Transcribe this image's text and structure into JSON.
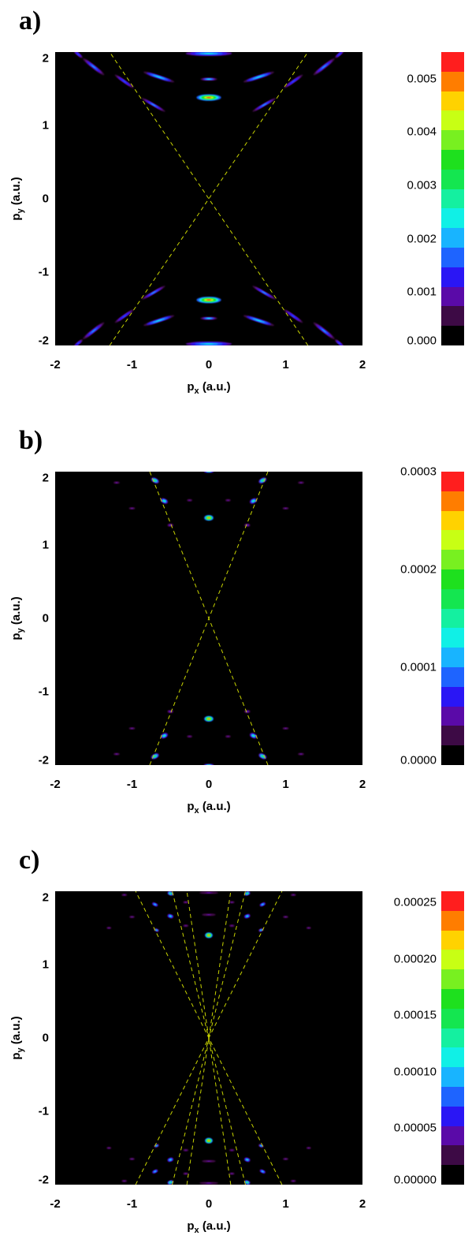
{
  "chart_data": [
    {
      "panel": "a)",
      "type": "heatmap",
      "xlabel_main": "p",
      "xlabel_sub": "x",
      "xlabel_unit": "(a.u.)",
      "ylabel_main": "p",
      "ylabel_sub": "y",
      "ylabel_unit": "(a.u.)",
      "xlim": [
        -2,
        2
      ],
      "ylim": [
        -2,
        2
      ],
      "xticks": [
        "-2",
        "-1",
        "0",
        "1",
        "2"
      ],
      "yticks": [
        "2",
        "1",
        "0",
        "-1",
        "-2"
      ],
      "colorbar_ticks": [
        "0.005",
        "0.004",
        "0.003",
        "0.002",
        "0.001",
        "0.000"
      ],
      "colorbar_values": [
        0.005,
        0.004,
        0.003,
        0.002,
        0.001,
        0.0
      ],
      "colorbar_max": 0.0055,
      "dashed_line_slopes": [
        1.55,
        -1.55
      ],
      "dashed_line_color": "#c8d400",
      "blobs": [
        {
          "x": 0.0,
          "y": 1.38,
          "w": 0.32,
          "h": 0.04,
          "level": 1.0
        },
        {
          "x": 0.0,
          "y": -1.38,
          "w": 0.32,
          "h": 0.04,
          "level": 1.0
        },
        {
          "x": 0.0,
          "y": 1.63,
          "w": 0.22,
          "h": 0.02,
          "level": 0.4
        },
        {
          "x": 0.0,
          "y": -1.63,
          "w": 0.22,
          "h": 0.02,
          "level": 0.4
        },
        {
          "x": 0.0,
          "y": 1.98,
          "w": 0.6,
          "h": 0.03,
          "level": 0.45
        },
        {
          "x": 0.0,
          "y": -1.98,
          "w": 0.6,
          "h": 0.03,
          "level": 0.45
        },
        {
          "x": -0.72,
          "y": 1.28,
          "w": 0.35,
          "h": 0.02,
          "level": 0.35,
          "rot": -30
        },
        {
          "x": 0.72,
          "y": 1.28,
          "w": 0.35,
          "h": 0.02,
          "level": 0.35,
          "rot": 30
        },
        {
          "x": -0.72,
          "y": -1.28,
          "w": 0.35,
          "h": 0.02,
          "level": 0.35,
          "rot": 30
        },
        {
          "x": 0.72,
          "y": -1.28,
          "w": 0.35,
          "h": 0.02,
          "level": 0.35,
          "rot": -30
        },
        {
          "x": -0.65,
          "y": 1.66,
          "w": 0.42,
          "h": 0.025,
          "level": 0.42,
          "rot": -18
        },
        {
          "x": 0.65,
          "y": 1.66,
          "w": 0.42,
          "h": 0.025,
          "level": 0.42,
          "rot": 18
        },
        {
          "x": -0.65,
          "y": -1.66,
          "w": 0.42,
          "h": 0.025,
          "level": 0.42,
          "rot": 18
        },
        {
          "x": 0.65,
          "y": -1.66,
          "w": 0.42,
          "h": 0.025,
          "level": 0.42,
          "rot": -18
        },
        {
          "x": -1.1,
          "y": 1.6,
          "w": 0.3,
          "h": 0.02,
          "level": 0.3,
          "rot": -35
        },
        {
          "x": 1.1,
          "y": 1.6,
          "w": 0.3,
          "h": 0.02,
          "level": 0.3,
          "rot": 35
        },
        {
          "x": -1.1,
          "y": -1.6,
          "w": 0.3,
          "h": 0.02,
          "level": 0.3,
          "rot": 35
        },
        {
          "x": 1.1,
          "y": -1.6,
          "w": 0.3,
          "h": 0.02,
          "level": 0.3,
          "rot": -35
        },
        {
          "x": -1.5,
          "y": 1.8,
          "w": 0.35,
          "h": 0.025,
          "level": 0.38,
          "rot": -38
        },
        {
          "x": 1.5,
          "y": 1.8,
          "w": 0.35,
          "h": 0.025,
          "level": 0.38,
          "rot": 38
        },
        {
          "x": -1.5,
          "y": -1.8,
          "w": 0.35,
          "h": 0.025,
          "level": 0.38,
          "rot": 38
        },
        {
          "x": 1.5,
          "y": -1.8,
          "w": 0.35,
          "h": 0.025,
          "level": 0.38,
          "rot": -38
        },
        {
          "x": -1.7,
          "y": 1.97,
          "w": 0.15,
          "h": 0.02,
          "level": 0.3,
          "rot": -40
        },
        {
          "x": 1.7,
          "y": 1.97,
          "w": 0.15,
          "h": 0.02,
          "level": 0.3,
          "rot": 40
        },
        {
          "x": -1.7,
          "y": -1.97,
          "w": 0.15,
          "h": 0.02,
          "level": 0.3,
          "rot": 40
        },
        {
          "x": 1.7,
          "y": -1.97,
          "w": 0.15,
          "h": 0.02,
          "level": 0.3,
          "rot": -40
        }
      ]
    },
    {
      "panel": "b)",
      "type": "heatmap",
      "xlabel_main": "p",
      "xlabel_sub": "x",
      "xlabel_unit": "(a.u.)",
      "ylabel_main": "p",
      "ylabel_sub": "y",
      "ylabel_unit": "(a.u.)",
      "xlim": [
        -2,
        2
      ],
      "ylim": [
        -2,
        2
      ],
      "xticks": [
        "-2",
        "-1",
        "0",
        "1",
        "2"
      ],
      "yticks": [
        "2",
        "1",
        "0",
        "-1",
        "-2"
      ],
      "colorbar_ticks": [
        "0.0003",
        "0.0002",
        "0.0001",
        "0.0000"
      ],
      "colorbar_values": [
        0.0003,
        0.0002,
        0.0001,
        0.0
      ],
      "colorbar_max": 0.0003,
      "dashed_line_slopes": [
        2.6,
        -2.6
      ],
      "dashed_line_color": "#c8d400",
      "blobs": [
        {
          "x": 0.0,
          "y": 1.37,
          "w": 0.12,
          "h": 0.035,
          "level": 1.0
        },
        {
          "x": 0.0,
          "y": -1.37,
          "w": 0.12,
          "h": 0.035,
          "level": 1.0
        },
        {
          "x": 0.0,
          "y": 2.0,
          "w": 0.13,
          "h": 0.015,
          "level": 0.55
        },
        {
          "x": 0.0,
          "y": -2.0,
          "w": 0.13,
          "h": 0.015,
          "level": 0.55
        },
        {
          "x": -0.58,
          "y": 1.6,
          "w": 0.1,
          "h": 0.03,
          "level": 0.55,
          "rot": -25
        },
        {
          "x": 0.58,
          "y": 1.6,
          "w": 0.1,
          "h": 0.03,
          "level": 0.55,
          "rot": 25
        },
        {
          "x": -0.58,
          "y": -1.6,
          "w": 0.1,
          "h": 0.03,
          "level": 0.55,
          "rot": 25
        },
        {
          "x": 0.58,
          "y": -1.6,
          "w": 0.1,
          "h": 0.03,
          "level": 0.55,
          "rot": -25
        },
        {
          "x": -0.7,
          "y": 1.88,
          "w": 0.11,
          "h": 0.03,
          "level": 0.6,
          "rot": -28
        },
        {
          "x": 0.7,
          "y": 1.88,
          "w": 0.11,
          "h": 0.03,
          "level": 0.6,
          "rot": 28
        },
        {
          "x": -0.7,
          "y": -1.88,
          "w": 0.11,
          "h": 0.03,
          "level": 0.6,
          "rot": 28
        },
        {
          "x": 0.7,
          "y": -1.88,
          "w": 0.11,
          "h": 0.03,
          "level": 0.6,
          "rot": -28
        },
        {
          "x": -0.5,
          "y": 1.27,
          "w": 0.08,
          "h": 0.02,
          "level": 0.2
        },
        {
          "x": 0.5,
          "y": 1.27,
          "w": 0.08,
          "h": 0.02,
          "level": 0.2
        },
        {
          "x": -0.5,
          "y": -1.27,
          "w": 0.08,
          "h": 0.02,
          "level": 0.2
        },
        {
          "x": 0.5,
          "y": -1.27,
          "w": 0.08,
          "h": 0.02,
          "level": 0.2
        },
        {
          "x": -0.25,
          "y": 1.61,
          "w": 0.07,
          "h": 0.015,
          "level": 0.15
        },
        {
          "x": 0.25,
          "y": 1.61,
          "w": 0.07,
          "h": 0.015,
          "level": 0.15
        },
        {
          "x": -0.25,
          "y": -1.61,
          "w": 0.07,
          "h": 0.015,
          "level": 0.15
        },
        {
          "x": 0.25,
          "y": -1.61,
          "w": 0.07,
          "h": 0.015,
          "level": 0.15
        },
        {
          "x": -1.0,
          "y": 1.5,
          "w": 0.08,
          "h": 0.015,
          "level": 0.15
        },
        {
          "x": 1.0,
          "y": 1.5,
          "w": 0.08,
          "h": 0.015,
          "level": 0.15
        },
        {
          "x": -1.0,
          "y": -1.5,
          "w": 0.08,
          "h": 0.015,
          "level": 0.15
        },
        {
          "x": 1.0,
          "y": -1.5,
          "w": 0.08,
          "h": 0.015,
          "level": 0.15
        },
        {
          "x": -1.2,
          "y": 1.85,
          "w": 0.08,
          "h": 0.015,
          "level": 0.15
        },
        {
          "x": 1.2,
          "y": 1.85,
          "w": 0.08,
          "h": 0.015,
          "level": 0.15
        },
        {
          "x": -1.2,
          "y": -1.85,
          "w": 0.08,
          "h": 0.015,
          "level": 0.15
        },
        {
          "x": 1.2,
          "y": -1.85,
          "w": 0.08,
          "h": 0.015,
          "level": 0.15
        }
      ]
    },
    {
      "panel": "c)",
      "type": "heatmap",
      "xlabel_main": "p",
      "xlabel_sub": "x",
      "xlabel_unit": "(a.u.)",
      "ylabel_main": "p",
      "ylabel_sub": "y",
      "ylabel_unit": "(a.u.)",
      "xlim": [
        -2,
        2
      ],
      "ylim": [
        -2,
        2
      ],
      "xticks": [
        "-2",
        "-1",
        "0",
        "1",
        "2"
      ],
      "yticks": [
        "2",
        "1",
        "0",
        "-1",
        "-2"
      ],
      "colorbar_ticks": [
        "0.00025",
        "0.00020",
        "0.00015",
        "0.00010",
        "0.00005",
        "0.00000"
      ],
      "colorbar_values": [
        0.00025,
        0.0002,
        0.00015,
        0.0001,
        5e-05,
        0.0
      ],
      "colorbar_max": 0.00026,
      "dashed_line_slopes": [
        2.1,
        -2.1,
        4.2,
        -4.2,
        7.0,
        -7.0
      ],
      "dashed_line_color": "#c8d400",
      "blobs": [
        {
          "x": 0.0,
          "y": 1.4,
          "w": 0.1,
          "h": 0.035,
          "level": 1.0
        },
        {
          "x": 0.0,
          "y": -1.4,
          "w": 0.1,
          "h": 0.035,
          "level": 1.0
        },
        {
          "x": -0.5,
          "y": 1.97,
          "w": 0.08,
          "h": 0.025,
          "level": 0.6,
          "rot": -20
        },
        {
          "x": 0.5,
          "y": 1.97,
          "w": 0.08,
          "h": 0.025,
          "level": 0.6,
          "rot": 20
        },
        {
          "x": -0.5,
          "y": -1.97,
          "w": 0.08,
          "h": 0.025,
          "level": 0.6,
          "rot": 20
        },
        {
          "x": 0.5,
          "y": -1.97,
          "w": 0.08,
          "h": 0.025,
          "level": 0.6,
          "rot": -20
        },
        {
          "x": -0.5,
          "y": 1.66,
          "w": 0.08,
          "h": 0.025,
          "level": 0.5,
          "rot": -18
        },
        {
          "x": 0.5,
          "y": 1.66,
          "w": 0.08,
          "h": 0.025,
          "level": 0.5,
          "rot": 18
        },
        {
          "x": -0.5,
          "y": -1.66,
          "w": 0.08,
          "h": 0.025,
          "level": 0.5,
          "rot": 18
        },
        {
          "x": 0.5,
          "y": -1.66,
          "w": 0.08,
          "h": 0.025,
          "level": 0.5,
          "rot": -18
        },
        {
          "x": -0.7,
          "y": 1.82,
          "w": 0.08,
          "h": 0.02,
          "level": 0.45,
          "rot": -25
        },
        {
          "x": 0.7,
          "y": 1.82,
          "w": 0.08,
          "h": 0.02,
          "level": 0.45,
          "rot": 25
        },
        {
          "x": -0.7,
          "y": -1.82,
          "w": 0.08,
          "h": 0.02,
          "level": 0.45,
          "rot": 25
        },
        {
          "x": 0.7,
          "y": -1.82,
          "w": 0.08,
          "h": 0.02,
          "level": 0.45,
          "rot": -25
        },
        {
          "x": -0.68,
          "y": 1.47,
          "w": 0.07,
          "h": 0.02,
          "level": 0.4,
          "rot": -22
        },
        {
          "x": 0.68,
          "y": 1.47,
          "w": 0.07,
          "h": 0.02,
          "level": 0.4,
          "rot": 22
        },
        {
          "x": -0.68,
          "y": -1.47,
          "w": 0.07,
          "h": 0.02,
          "level": 0.4,
          "rot": 22
        },
        {
          "x": 0.68,
          "y": -1.47,
          "w": 0.07,
          "h": 0.02,
          "level": 0.4,
          "rot": -22
        },
        {
          "x": 0.0,
          "y": 1.98,
          "w": 0.25,
          "h": 0.015,
          "level": 0.15
        },
        {
          "x": 0.0,
          "y": -1.98,
          "w": 0.25,
          "h": 0.015,
          "level": 0.15
        },
        {
          "x": 0.0,
          "y": 1.68,
          "w": 0.18,
          "h": 0.015,
          "level": 0.15
        },
        {
          "x": 0.0,
          "y": -1.68,
          "w": 0.18,
          "h": 0.015,
          "level": 0.15
        },
        {
          "x": -0.3,
          "y": 1.85,
          "w": 0.07,
          "h": 0.015,
          "level": 0.15
        },
        {
          "x": 0.3,
          "y": 1.85,
          "w": 0.07,
          "h": 0.015,
          "level": 0.15
        },
        {
          "x": -0.3,
          "y": -1.85,
          "w": 0.07,
          "h": 0.015,
          "level": 0.15
        },
        {
          "x": 0.3,
          "y": -1.85,
          "w": 0.07,
          "h": 0.015,
          "level": 0.15
        },
        {
          "x": -0.3,
          "y": 1.53,
          "w": 0.07,
          "h": 0.015,
          "level": 0.15
        },
        {
          "x": 0.3,
          "y": 1.53,
          "w": 0.07,
          "h": 0.015,
          "level": 0.15
        },
        {
          "x": -0.3,
          "y": -1.53,
          "w": 0.07,
          "h": 0.015,
          "level": 0.15
        },
        {
          "x": 0.3,
          "y": -1.53,
          "w": 0.07,
          "h": 0.015,
          "level": 0.15
        },
        {
          "x": -1.0,
          "y": 1.65,
          "w": 0.07,
          "h": 0.015,
          "level": 0.15
        },
        {
          "x": 1.0,
          "y": 1.65,
          "w": 0.07,
          "h": 0.015,
          "level": 0.15
        },
        {
          "x": -1.0,
          "y": -1.65,
          "w": 0.07,
          "h": 0.015,
          "level": 0.15
        },
        {
          "x": 1.0,
          "y": -1.65,
          "w": 0.07,
          "h": 0.015,
          "level": 0.15
        },
        {
          "x": -1.1,
          "y": 1.95,
          "w": 0.07,
          "h": 0.015,
          "level": 0.15
        },
        {
          "x": 1.1,
          "y": 1.95,
          "w": 0.07,
          "h": 0.015,
          "level": 0.15
        },
        {
          "x": -1.1,
          "y": -1.95,
          "w": 0.07,
          "h": 0.015,
          "level": 0.15
        },
        {
          "x": 1.1,
          "y": -1.95,
          "w": 0.07,
          "h": 0.015,
          "level": 0.15
        },
        {
          "x": -1.3,
          "y": 1.5,
          "w": 0.06,
          "h": 0.015,
          "level": 0.15
        },
        {
          "x": 1.3,
          "y": 1.5,
          "w": 0.06,
          "h": 0.015,
          "level": 0.15
        },
        {
          "x": -1.3,
          "y": -1.5,
          "w": 0.06,
          "h": 0.015,
          "level": 0.15
        },
        {
          "x": 1.3,
          "y": -1.5,
          "w": 0.06,
          "h": 0.015,
          "level": 0.15
        }
      ]
    }
  ],
  "colormap": [
    "#000000",
    "#3d0a45",
    "#5a0aa8",
    "#2a16f5",
    "#1e64ff",
    "#18b4ff",
    "#10f0e6",
    "#14f0a0",
    "#14e650",
    "#1ee01e",
    "#78f020",
    "#c8ff14",
    "#ffd200",
    "#ff7d00",
    "#ff1e1e"
  ]
}
